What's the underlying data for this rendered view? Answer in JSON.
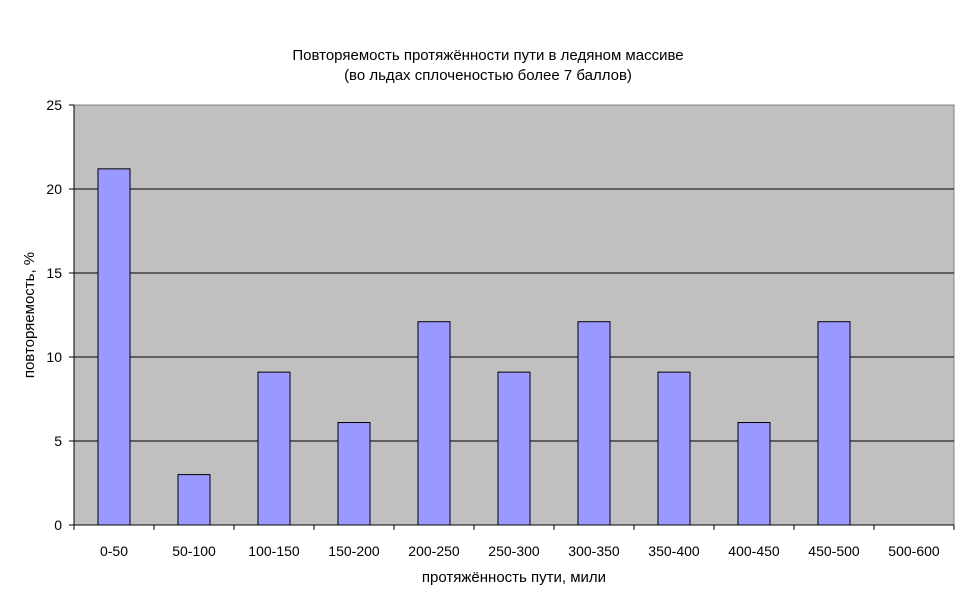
{
  "chart_data": {
    "type": "bar",
    "title": "Повторяемость протяжённости пути в ледяном массиве",
    "subtitle": "(во льдах сплоченостью более 7 баллов)",
    "xlabel": "протяжённость пути, мили",
    "ylabel": "повторяемость, %",
    "categories": [
      "0-50",
      "50-100",
      "100-150",
      "150-200",
      "200-250",
      "250-300",
      "300-350",
      "350-400",
      "400-450",
      "450-500",
      "500-600"
    ],
    "values": [
      21.2,
      3.0,
      9.1,
      6.1,
      12.1,
      9.1,
      12.1,
      9.1,
      6.1,
      12.1,
      0
    ],
    "ylim": [
      0,
      25
    ],
    "yticks": [
      0,
      5,
      10,
      15,
      20,
      25
    ],
    "grid": true,
    "legend": "none",
    "colors": {
      "bar_fill": "#9999ff",
      "plot_background": "#c0c0c0",
      "gridline": "#000000"
    }
  }
}
